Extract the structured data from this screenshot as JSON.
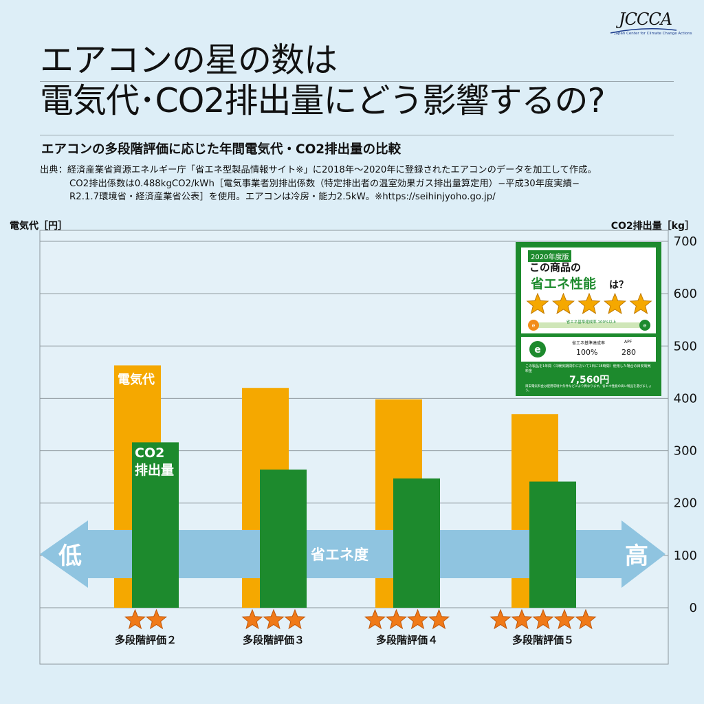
{
  "logo": {
    "text": "JCCCA",
    "subtitle": "Japan Center for Climate Change Actions"
  },
  "title": {
    "line1": "エアコンの星の数は",
    "line2": "電気代･CO2排出量にどう影響するの?"
  },
  "subtitle": "エアコンの多段階評価に応じた年間電気代・CO2排出量の比較",
  "source": {
    "line1": "出典：経済産業省資源エネルギー庁「省エネ型製品情報サイト※」に2018年～2020年に登録されたエアコンのデータを加工して作成。",
    "line2": "CO2排出係数は0.488kgCO2/kWh［電気事業者別排出係数（特定排出者の温室効果ガス排出量算定用）−平成30年度実績−",
    "line3": "R2.1.7環境省・経済産業省公表］を使用。エアコンは冷房・能力2.5kW。※https://seihinjyoho.go.jp/"
  },
  "axis": {
    "left_label": "電気代［円］",
    "right_label": "CO2排出量［kg］"
  },
  "chart_data": {
    "type": "bar",
    "categories": [
      "多段階評価２",
      "多段階評価３",
      "多段階評価４",
      "多段階評価５"
    ],
    "stars": [
      2,
      3,
      4,
      5
    ],
    "series": [
      {
        "name": "電気代",
        "color": "#f5a800",
        "values": [
          463,
          420,
          398,
          370
        ]
      },
      {
        "name": "CO2 排出量",
        "color": "#1d8a2d",
        "values": [
          316,
          264,
          247,
          241
        ]
      }
    ],
    "y_right": {
      "label": "CO2排出量［kg］",
      "ticks": [
        0,
        100,
        200,
        300,
        400,
        500,
        600,
        700
      ],
      "range": [
        0,
        700
      ]
    },
    "y_left": {
      "label": "電気代［円］"
    },
    "grid": true,
    "arrow": {
      "low": "低",
      "high": "高",
      "label": "省エネ度"
    },
    "inline_labels": {
      "cost": "電気代",
      "co2_line1": "CO2",
      "co2_line2": "排出量"
    }
  },
  "energy_label": {
    "year": "2020年度版",
    "q1": "この商品の",
    "q2": "省エネ性能",
    "q3": "は？",
    "stars": 5,
    "rate_label": "省エネ基準達成率 100%以上",
    "rate_header": "省エネ基準達成率",
    "apf_header": "APF",
    "rate_value": "100%",
    "apf_value": "280",
    "footnote": "この製品を1年間（冷暖房期間中において1日に18時間）使用した場合の目安電気料金",
    "price": "7,560円",
    "footnote2": "目安電気料金は使用環境や条件などにより異なります。省エネ性能の高い製品を選びましょう。"
  },
  "colors": {
    "background": "#ddeef7",
    "orange": "#f5a800",
    "green": "#1d8a2d",
    "arrow": "#8fc4e0",
    "star": "#f07a18"
  }
}
